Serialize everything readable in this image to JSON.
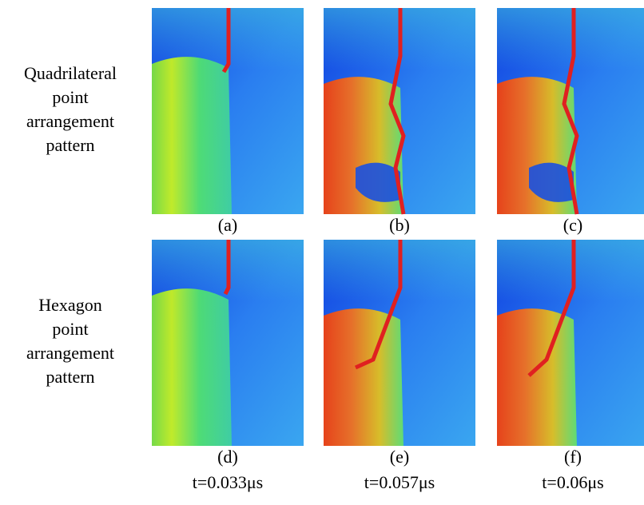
{
  "rows": [
    {
      "label_lines": [
        "Quadrilateral",
        "point",
        "arrangement",
        "pattern"
      ],
      "panels": [
        "(a)",
        "(b)",
        "(c)"
      ]
    },
    {
      "label_lines": [
        "Hexagon",
        "point",
        "arrangement",
        "pattern"
      ],
      "panels": [
        "(d)",
        "(e)",
        "(f)"
      ]
    }
  ],
  "times": [
    "t=0.033μs",
    "t=0.057μs",
    "t=0.06μs"
  ]
}
